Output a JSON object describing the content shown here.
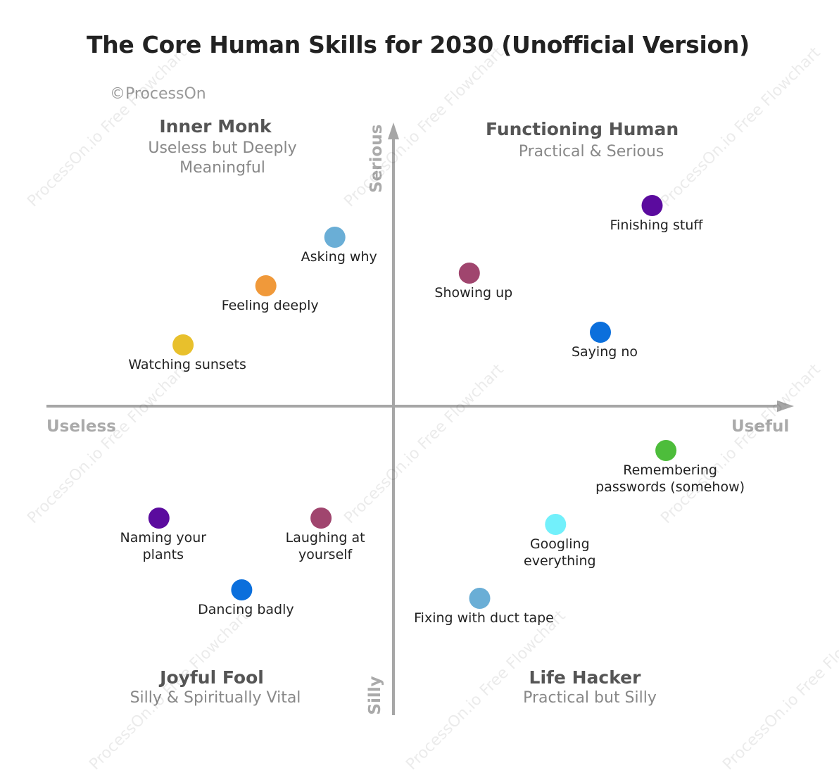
{
  "title": "The Core Human Skills for 2030 (Unofficial Version)",
  "credit": "©ProcessOn",
  "watermark_text": "ProcessOn.io Free Flowchart",
  "axes": {
    "x_left": "Useless",
    "x_right": "Useful",
    "y_top": "Serious",
    "y_bottom": "Silly",
    "color": "#a6a6a6"
  },
  "quadrants": {
    "top_left": {
      "title": "Inner Monk",
      "subtitle_line1": "Useless but Deeply",
      "subtitle_line2": "Meaningful"
    },
    "top_right": {
      "title": "Functioning Human",
      "subtitle": "Practical & Serious"
    },
    "bottom_left": {
      "title": "Joyful Fool",
      "subtitle": "Silly & Spiritually Vital"
    },
    "bottom_right": {
      "title": "Life Hacker",
      "subtitle": "Practical but Silly"
    }
  },
  "points": [
    {
      "label": [
        "Asking why"
      ],
      "x": -0.17,
      "y": 0.8,
      "color": "#6aaed6"
    },
    {
      "label": [
        "Feeling deeply"
      ],
      "x": -0.37,
      "y": 0.57,
      "color": "#f0993a"
    },
    {
      "label": [
        "Watching sunsets"
      ],
      "x": -0.61,
      "y": 0.29,
      "color": "#e8c02c"
    },
    {
      "label": [
        "Showing up"
      ],
      "x": 0.22,
      "y": 0.63,
      "color": "#a0456e"
    },
    {
      "label": [
        "Finishing stuff"
      ],
      "x": 0.75,
      "y": 0.95,
      "color": "#5b0b9e"
    },
    {
      "label": [
        "Saying no"
      ],
      "x": 0.6,
      "y": 0.35,
      "color": "#0b6fdc"
    },
    {
      "label": [
        "Remembering",
        "passwords (somehow)"
      ],
      "x": 0.79,
      "y": -0.21,
      "color": "#4dbd3b"
    },
    {
      "label": [
        "Googling",
        "everything"
      ],
      "x": 0.47,
      "y": -0.56,
      "color": "#72f0fb"
    },
    {
      "label": [
        "Fixing with duct tape"
      ],
      "x": 0.25,
      "y": -0.91,
      "color": "#6aaed6"
    },
    {
      "label": [
        "Naming your",
        "plants"
      ],
      "x": -0.68,
      "y": -0.53,
      "color": "#5b0b9e"
    },
    {
      "label": [
        "Laughing at",
        "yourself"
      ],
      "x": -0.21,
      "y": -0.53,
      "color": "#a0456e"
    },
    {
      "label": [
        "Dancing badly"
      ],
      "x": -0.44,
      "y": -0.87,
      "color": "#0b6fdc"
    }
  ]
}
